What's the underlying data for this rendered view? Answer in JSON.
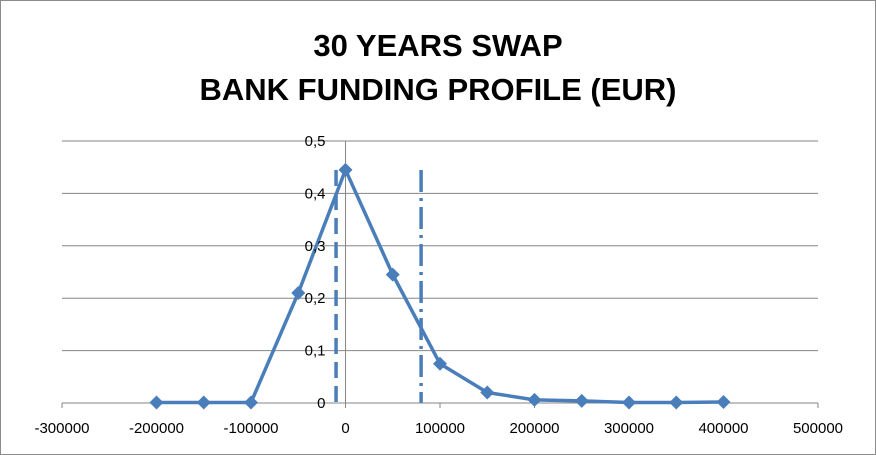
{
  "chart_data": {
    "type": "line",
    "title_line1": "30 YEARS SWAP",
    "title_line2": "BANK FUNDING PROFILE (EUR)",
    "xlabel": "",
    "ylabel": "",
    "xlim": [
      -300000,
      500000
    ],
    "ylim": [
      0,
      0.5
    ],
    "x_ticks": [
      -300000,
      -200000,
      -100000,
      0,
      100000,
      200000,
      300000,
      400000,
      500000
    ],
    "x_tick_labels": [
      "-300000",
      "-200000",
      "-100000",
      "0",
      "100000",
      "200000",
      "300000",
      "400000",
      "500000"
    ],
    "y_ticks": [
      0,
      0.1,
      0.2,
      0.3,
      0.4,
      0.5
    ],
    "y_tick_labels": [
      "0",
      "0,1",
      "0,2",
      "0,3",
      "0,4",
      "0,5"
    ],
    "grid": true,
    "legend": "none",
    "series": [
      {
        "color": "#4a7ebb",
        "marker": "diamond",
        "x": [
          -200000,
          -150000,
          -100000,
          -50000,
          0,
          50000,
          100000,
          150000,
          200000,
          250000,
          300000,
          350000,
          400000
        ],
        "values": [
          0.001,
          0.001,
          0.001,
          0.21,
          0.445,
          0.245,
          0.075,
          0.02,
          0.006,
          0.004,
          0.001,
          0.001,
          0.002
        ]
      }
    ],
    "vertical_lines": [
      {
        "x": -10000,
        "style": "dashed",
        "color": "#4a7ebb"
      },
      {
        "x": 80000,
        "style": "dash-dot",
        "color": "#4a7ebb"
      }
    ]
  }
}
